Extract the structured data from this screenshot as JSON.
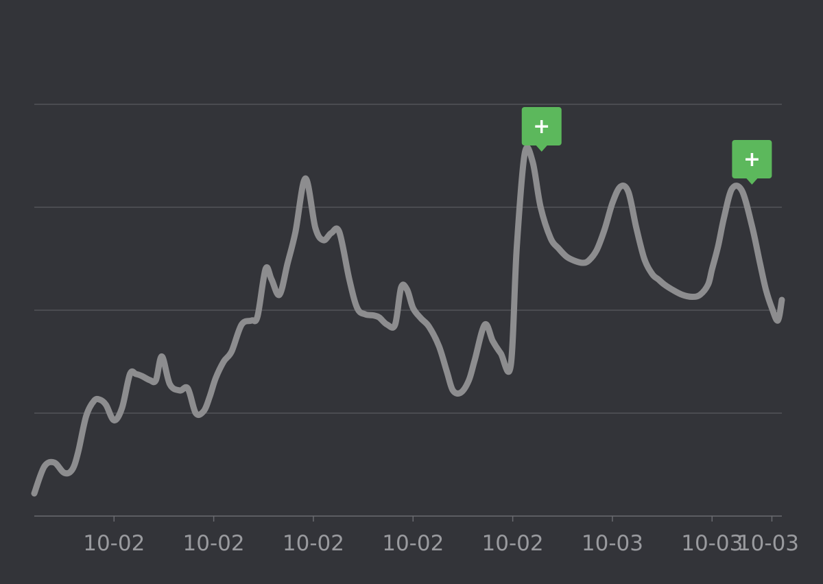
{
  "chart_data": {
    "type": "line",
    "title": "",
    "xlabel": "",
    "ylabel": "",
    "x_tick_labels": [
      "10-02",
      "10-02",
      "10-02",
      "10-02",
      "10-02",
      "10-03",
      "10-03",
      "10-03"
    ],
    "x_tick_positions": [
      3,
      8,
      13,
      18,
      23,
      28,
      33,
      36
    ],
    "xlim": [
      -1,
      36.5
    ],
    "ylim": [
      0,
      4
    ],
    "y_gridlines": [
      1,
      2,
      3,
      4
    ],
    "grid": true,
    "legend": "none",
    "series": [
      {
        "x": [
          -1,
          -0.5,
          0,
          0.5,
          0.9,
          1.2,
          1.6,
          2,
          2.3,
          2.6,
          3,
          3.4,
          3.8,
          4.1,
          4.4,
          4.8,
          5.1,
          5.4,
          5.8,
          6.3,
          6.7,
          7.1,
          7.5,
          7.8,
          8.1,
          8.5,
          8.9,
          9.4,
          9.9,
          10.2,
          10.6,
          10.9,
          11.3,
          11.7,
          12.1,
          12.6,
          13.1,
          13.5,
          13.9,
          14.3,
          14.8,
          15.2,
          15.6,
          16.0,
          16.3,
          16.7,
          17.1,
          17.4,
          17.7,
          18.0,
          18.4,
          18.8,
          19.3,
          19.7,
          20.0,
          20.4,
          20.8,
          21.1,
          21.6,
          22.0,
          22.4,
          22.9,
          23.2,
          23.6,
          24.0,
          24.4,
          24.9,
          25.3,
          25.7,
          26.1,
          26.5,
          26.8,
          27.2,
          27.6,
          28.0,
          28.4,
          28.8,
          29.2,
          29.6,
          30.0,
          30.3,
          30.6,
          31.0,
          31.5,
          32.0,
          32.4,
          32.8,
          33.0,
          33.3,
          33.6,
          34.0,
          34.5,
          35.0,
          35.4,
          35.7,
          36.0,
          36.3,
          36.5
        ],
        "y": [
          0.22,
          0.48,
          0.52,
          0.42,
          0.45,
          0.62,
          0.97,
          1.12,
          1.13,
          1.08,
          0.93,
          1.05,
          1.38,
          1.38,
          1.36,
          1.32,
          1.32,
          1.55,
          1.28,
          1.22,
          1.24,
          1.0,
          1.02,
          1.16,
          1.34,
          1.5,
          1.6,
          1.86,
          1.9,
          1.94,
          2.4,
          2.3,
          2.15,
          2.45,
          2.76,
          3.28,
          2.8,
          2.68,
          2.75,
          2.76,
          2.3,
          2.02,
          1.96,
          1.95,
          1.93,
          1.86,
          1.86,
          2.22,
          2.2,
          2.02,
          1.92,
          1.84,
          1.65,
          1.4,
          1.22,
          1.2,
          1.32,
          1.52,
          1.86,
          1.7,
          1.58,
          1.46,
          2.6,
          3.52,
          3.44,
          3.0,
          2.7,
          2.6,
          2.52,
          2.48,
          2.46,
          2.48,
          2.58,
          2.78,
          3.04,
          3.2,
          3.15,
          2.8,
          2.5,
          2.35,
          2.3,
          2.25,
          2.2,
          2.15,
          2.13,
          2.15,
          2.25,
          2.4,
          2.62,
          2.9,
          3.18,
          3.16,
          2.82,
          2.46,
          2.2,
          2.02,
          1.9,
          2.1
        ]
      }
    ],
    "annotations": [
      {
        "type": "marker",
        "glyph": "+",
        "x": 24.45,
        "y": 3.52,
        "color": "#5cb85c"
      },
      {
        "type": "marker",
        "glyph": "+",
        "x": 35.0,
        "y": 3.2,
        "color": "#5cb85c"
      }
    ],
    "colors": {
      "background": "#333439",
      "line": "#8d8d8f",
      "grid": "#5a5b60",
      "axis": "#6a6b70",
      "tick_label": "#9a9b9f",
      "marker": "#5cb85c",
      "marker_glyph": "#ffffff"
    }
  }
}
